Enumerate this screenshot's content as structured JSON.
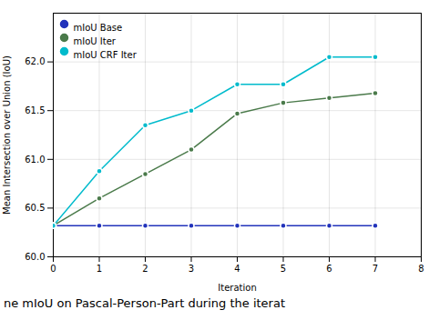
{
  "chart_data": {
    "type": "line",
    "caption": "ne mIoU on Pascal-Person-Part during the iterat",
    "x_label": "Iteration",
    "y_label": "Mean Intersection over Union (IoU)",
    "x": [
      0,
      1,
      2,
      3,
      4,
      5,
      6,
      7
    ],
    "series": [
      {
        "name": "mIoU Base",
        "color": "#2233bb",
        "values": [
          60.32,
          60.32,
          60.32,
          60.32,
          60.32,
          60.32,
          60.32,
          60.32
        ]
      },
      {
        "name": "mIoU Iter",
        "color": "#4a7a4a",
        "values": [
          60.32,
          60.6,
          60.85,
          61.1,
          61.47,
          61.58,
          61.63,
          61.68
        ]
      },
      {
        "name": "mIoU CRF Iter",
        "color": "#00bbcc",
        "values": [
          60.32,
          60.88,
          61.35,
          61.5,
          61.77,
          61.77,
          62.05,
          62.05
        ]
      }
    ],
    "xlim": [
      0,
      8
    ],
    "ylim": [
      60.0,
      62.5
    ],
    "xticks": [
      0,
      1,
      2,
      3,
      4,
      5,
      6,
      7,
      8
    ],
    "yticks": [
      {
        "value": 60.0,
        "label": "60.0"
      },
      {
        "value": 60.5,
        "label": "60.5"
      },
      {
        "value": 61.0,
        "label": "61.0"
      },
      {
        "value": 61.5,
        "label": "61.5"
      },
      {
        "value": 62.0,
        "label": "62.0"
      }
    ],
    "marker": "circle",
    "grid": true,
    "legend": "upper left"
  }
}
